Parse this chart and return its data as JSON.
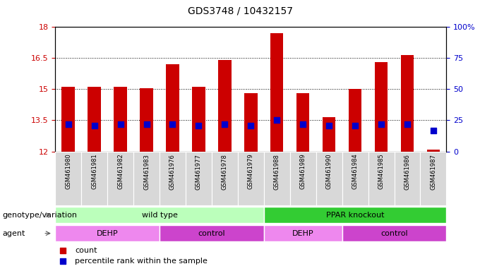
{
  "title": "GDS3748 / 10432157",
  "samples": [
    "GSM461980",
    "GSM461981",
    "GSM461982",
    "GSM461983",
    "GSM461976",
    "GSM461977",
    "GSM461978",
    "GSM461979",
    "GSM461988",
    "GSM461989",
    "GSM461990",
    "GSM461984",
    "GSM461985",
    "GSM461986",
    "GSM461987"
  ],
  "count_values": [
    15.1,
    15.1,
    15.1,
    15.05,
    16.2,
    15.1,
    16.4,
    14.8,
    17.7,
    14.8,
    13.65,
    15.0,
    16.3,
    16.65,
    12.1
  ],
  "percentile_values": [
    22,
    21,
    22,
    22,
    22,
    21,
    22,
    21,
    25,
    22,
    21,
    21,
    22,
    22,
    17
  ],
  "ymin": 12,
  "ymax": 18,
  "yticks": [
    12,
    13.5,
    15,
    16.5,
    18
  ],
  "ytick_labels": [
    "12",
    "13.5",
    "15",
    "16.5",
    "18"
  ],
  "right_yticks": [
    0,
    25,
    50,
    75,
    100
  ],
  "right_ytick_labels": [
    "0",
    "25",
    "50",
    "75",
    "100%"
  ],
  "bar_color": "#cc0000",
  "percentile_color": "#0000cc",
  "bar_width": 0.5,
  "percentile_marker_size": 28,
  "genotype_groups": [
    {
      "label": "wild type",
      "start": 0,
      "end": 7,
      "color": "#bbffbb"
    },
    {
      "label": "PPAR knockout",
      "start": 8,
      "end": 14,
      "color": "#33cc33"
    }
  ],
  "agent_groups": [
    {
      "label": "DEHP",
      "start": 0,
      "end": 3,
      "color": "#ee88ee"
    },
    {
      "label": "control",
      "start": 4,
      "end": 7,
      "color": "#cc44cc"
    },
    {
      "label": "DEHP",
      "start": 8,
      "end": 10,
      "color": "#ee88ee"
    },
    {
      "label": "control",
      "start": 11,
      "end": 14,
      "color": "#cc44cc"
    }
  ],
  "grid_color": "#000000",
  "background_color": "#ffffff",
  "label_row1": "genotype/variation",
  "label_row2": "agent",
  "title_fontsize": 10,
  "tick_fontsize": 8,
  "sample_fontsize": 6,
  "row_label_fontsize": 8,
  "group_label_fontsize": 8,
  "legend_fontsize": 8
}
